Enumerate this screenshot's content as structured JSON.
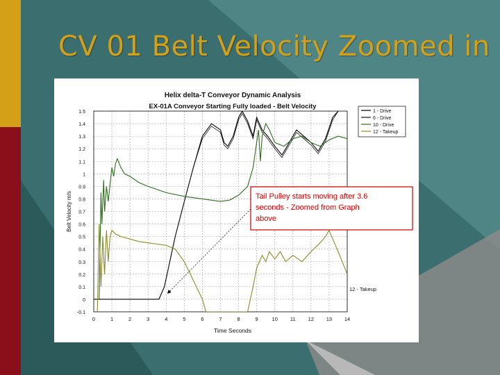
{
  "slide": {
    "title": "CV 01 Belt Velocity Zoomed in",
    "colors": {
      "background": "#3b6e6e",
      "gold_bar": "#d4a017",
      "maroon_bar": "#8b0f1a",
      "title": "#d4a017"
    }
  },
  "chart_data": {
    "type": "line",
    "title": "Helix delta-T Conveyor Dynamic Analysis",
    "subtitle": "EX-01A Conveyor Starting Fully loaded - Belt Velocity",
    "xlabel": "Time Seconds",
    "ylabel": "Belt Velocity m/s",
    "xlim": [
      0,
      14
    ],
    "ylim": [
      -0.1,
      1.5
    ],
    "x_ticks": [
      0,
      1,
      2,
      3,
      4,
      5,
      6,
      7,
      8,
      9,
      10,
      11,
      12,
      13,
      14
    ],
    "y_ticks": [
      -0.1,
      0,
      0.1,
      0.2,
      0.3,
      0.4,
      0.5,
      0.6,
      0.7,
      0.8,
      0.9,
      1,
      1.1,
      1.2,
      1.3,
      1.4,
      1.5
    ],
    "x_tick_labels": [
      "0",
      "1",
      "2",
      "3",
      "4",
      "5",
      "6",
      "7",
      "8",
      "9",
      "10",
      "11",
      "12",
      "13",
      "14"
    ],
    "y_tick_labels": [
      "-0.1",
      "0",
      "0.1",
      "0.2",
      "0.3",
      "0.4",
      "0.5",
      "0.6",
      "0.7",
      "0.8",
      "0.9",
      "1",
      "1.1",
      "1.2",
      "1.3",
      "1.4",
      "1.5"
    ],
    "grid": true,
    "legend_position": "top-right",
    "series": [
      {
        "name": "1 - Drive",
        "color": "#000000",
        "x": [
          0,
          3.6,
          3.9,
          4.2,
          4.5,
          5.0,
          5.5,
          6.0,
          6.5,
          7.0,
          7.2,
          7.4,
          7.7,
          8.0,
          8.2,
          8.5,
          8.8,
          9.0,
          9.3,
          9.6,
          10.0,
          10.4,
          10.8,
          11.2,
          11.6,
          12.0,
          12.4,
          12.8,
          13.2,
          13.5
        ],
        "y": [
          0,
          0,
          0.1,
          0.3,
          0.5,
          0.78,
          1.05,
          1.3,
          1.4,
          1.35,
          1.25,
          1.22,
          1.3,
          1.45,
          1.5,
          1.42,
          1.3,
          1.45,
          1.35,
          1.3,
          1.22,
          1.15,
          1.25,
          1.35,
          1.3,
          1.25,
          1.18,
          1.28,
          1.45,
          1.5
        ]
      },
      {
        "name": "6 - Drive",
        "color": "#111111",
        "x": [
          3.6,
          3.9,
          4.2,
          4.5,
          5.0,
          5.5,
          6.0,
          6.5,
          7.0,
          7.2,
          7.4,
          7.7,
          8.0,
          8.2,
          8.5,
          8.8,
          9.0,
          9.3,
          9.6,
          10.0,
          10.4,
          10.8,
          11.2,
          11.6,
          12.0,
          12.4,
          12.8,
          13.2,
          13.5
        ],
        "y": [
          0,
          0.1,
          0.3,
          0.5,
          0.78,
          1.05,
          1.28,
          1.38,
          1.33,
          1.23,
          1.2,
          1.28,
          1.43,
          1.48,
          1.4,
          1.28,
          1.43,
          1.33,
          1.28,
          1.2,
          1.13,
          1.23,
          1.33,
          1.28,
          1.23,
          1.16,
          1.26,
          1.43,
          1.5
        ]
      },
      {
        "name": "10 - Drive",
        "color": "#2e6b1f",
        "x": [
          0.3,
          0.4,
          0.45,
          0.55,
          0.6,
          0.7,
          0.8,
          0.9,
          1.0,
          1.1,
          1.2,
          1.3,
          1.5,
          1.7,
          2.0,
          2.5,
          3.0,
          4.0,
          5.0,
          6.0,
          7.0,
          7.5,
          8.0,
          8.5,
          8.8,
          9.0,
          9.1,
          9.2,
          9.3,
          9.5,
          9.7,
          10.0,
          10.5,
          11.0,
          11.5,
          12.0,
          12.5,
          13.0,
          13.5,
          14.0
        ],
        "y": [
          0,
          0.85,
          0.6,
          0.95,
          0.7,
          0.9,
          0.78,
          0.92,
          1.05,
          0.98,
          1.08,
          1.12,
          1.05,
          1.0,
          0.98,
          0.93,
          0.9,
          0.85,
          0.82,
          0.8,
          0.78,
          0.79,
          0.83,
          0.9,
          1.05,
          1.25,
          1.35,
          1.1,
          1.3,
          1.4,
          1.35,
          1.25,
          1.22,
          1.28,
          1.3,
          1.25,
          1.22,
          1.27,
          1.3,
          1.28
        ]
      },
      {
        "name": "12 - Takeup",
        "color": "#8a8a2a",
        "x": [
          0.2,
          0.3,
          0.4,
          0.5,
          0.6,
          0.7,
          0.8,
          0.9,
          1.0,
          1.2,
          1.5,
          2.0,
          2.5,
          3.0,
          3.5,
          4.0,
          4.5,
          5.0,
          5.5,
          6.0,
          6.2,
          8.5,
          8.8,
          9.0,
          9.3,
          9.5,
          9.7,
          10.0,
          10.3,
          10.6,
          11.0,
          11.5,
          12.0,
          12.5,
          12.8,
          13.0,
          13.2,
          13.5,
          14.0
        ],
        "y": [
          -0.1,
          0.6,
          0.1,
          0.5,
          0.2,
          0.55,
          0.3,
          0.5,
          0.55,
          0.52,
          0.5,
          0.48,
          0.46,
          0.45,
          0.44,
          0.43,
          0.4,
          0.3,
          0.15,
          0.0,
          -0.1,
          -0.1,
          0.1,
          0.25,
          0.35,
          0.3,
          0.38,
          0.32,
          0.38,
          0.3,
          0.35,
          0.3,
          0.38,
          0.45,
          0.5,
          0.55,
          0.48,
          0.38,
          0.2
        ]
      }
    ],
    "annotation": {
      "text_lines": [
        "Tail Pulley starts moving after 3.6",
        "seconds - Zoomed from Graph",
        "above"
      ],
      "arrow_to": [
        4.1,
        0.05
      ],
      "color": "#cc0000"
    },
    "side_label": "12 - Takeup"
  }
}
